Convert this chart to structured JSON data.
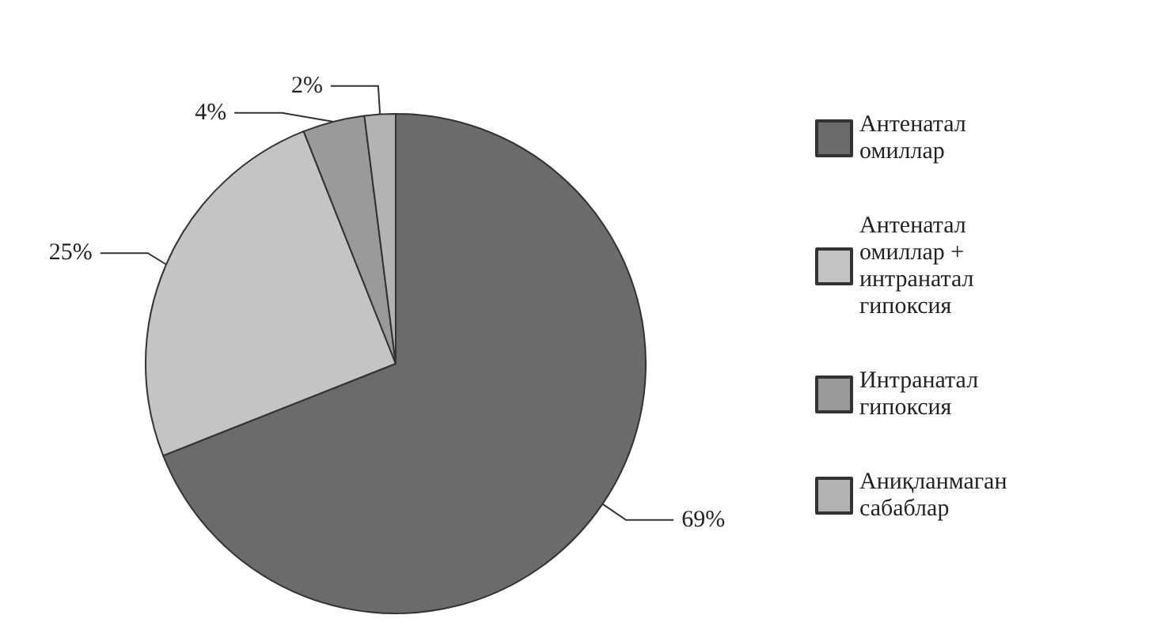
{
  "chart_data": {
    "type": "pie",
    "categories": [
      "Антенатал омиллар",
      "Антенатал омиллар + интранатал гипоксия",
      "Интранатал гипоксия",
      "Аниқланмаган сабаблар"
    ],
    "values": [
      69,
      25,
      4,
      2
    ],
    "colors": [
      "#6b6b6b",
      "#c4c4c4",
      "#9a9a9a",
      "#b3b3b3"
    ],
    "value_labels": [
      "69%",
      "25%",
      "4%",
      "2%"
    ],
    "legend": "right"
  }
}
